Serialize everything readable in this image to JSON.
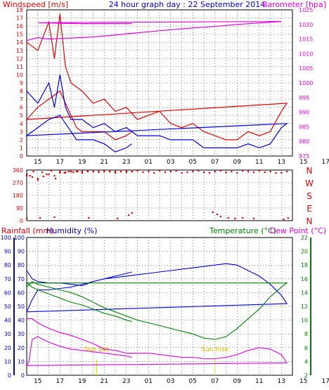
{
  "chart_data": [
    {
      "type": "line",
      "title": "24 hour graph day : 22 September 2014",
      "ylabel_left": "Windspeed [m/s]",
      "ylabel_right": "Barometer [hpa]",
      "x_tick_labels": [
        "15",
        "17",
        "19",
        "21",
        "23",
        "01",
        "03",
        "05",
        "07",
        "09",
        "11",
        "13",
        "15",
        "17",
        "19",
        "21",
        "23"
      ],
      "ylim_left": [
        0,
        18
      ],
      "ylim_right": [
        975,
        1025
      ],
      "left_ticks": [
        0,
        1,
        2,
        3,
        4,
        5,
        6,
        7,
        8,
        9,
        10,
        11,
        12,
        13,
        14,
        15,
        16,
        17,
        18
      ],
      "right_ticks": [
        975,
        980,
        985,
        990,
        995,
        1000,
        1005,
        1010,
        1015,
        1020,
        1025
      ],
      "grid": true,
      "series": [
        {
          "name": "Gust",
          "color": "#e00000",
          "axis": "left",
          "x": [
            14,
            15,
            16,
            16.5,
            17,
            17.5,
            18,
            19,
            20,
            21,
            22,
            23,
            0,
            1,
            2,
            3,
            4,
            5,
            6,
            7,
            8,
            9,
            10,
            11,
            12,
            13,
            13.5,
            14,
            15,
            16,
            17,
            18,
            18.5,
            19,
            20,
            21,
            22,
            23,
            23.5
          ],
          "y": [
            14,
            13,
            16.5,
            12,
            17.5,
            11,
            9,
            8,
            6.5,
            7,
            5.5,
            6,
            4.5,
            5,
            5.5,
            4,
            3.5,
            4,
            3,
            2.5,
            2,
            2,
            3,
            2.5,
            3,
            5.5,
            6.5,
            4.5,
            6,
            7,
            8,
            5,
            3.5,
            3,
            3,
            3,
            2,
            2.5,
            3
          ]
        },
        {
          "name": "Speed",
          "color": "#0000e0",
          "axis": "left",
          "x": [
            14,
            15,
            16,
            16.5,
            17,
            17.5,
            18,
            19,
            20,
            21,
            22,
            23,
            0,
            1,
            2,
            3,
            4,
            5,
            6,
            7,
            8,
            9,
            10,
            11,
            12,
            13,
            13.5,
            14,
            15,
            16,
            17,
            18,
            18.5,
            19,
            20,
            21,
            22,
            23,
            23.5
          ],
          "y": [
            8,
            6.5,
            9,
            6,
            10,
            6,
            4.5,
            4.5,
            3.5,
            4,
            3,
            3.5,
            2.5,
            2.5,
            2.5,
            2,
            2,
            2,
            1,
            1,
            1,
            1,
            1.5,
            1,
            1.5,
            3.5,
            4,
            2.5,
            3.5,
            4.5,
            5,
            3,
            2,
            2,
            2,
            1.5,
            0.5,
            1,
            1.5
          ]
        },
        {
          "name": "Barometer",
          "color": "#e000e0",
          "axis": "right",
          "x": [
            14,
            15,
            16,
            17,
            19,
            21,
            23,
            1,
            3,
            5,
            7,
            9,
            11,
            13,
            15,
            17,
            19,
            21,
            23,
            23.5
          ],
          "y": [
            1014.5,
            1015.5,
            1015,
            1015.2,
            1015.5,
            1016,
            1016.8,
            1017.5,
            1018.2,
            1018.8,
            1019.3,
            1020,
            1020.5,
            1021,
            1020.6,
            1020.4,
            1020.3,
            1020.3,
            1020.3,
            1020.3
          ]
        }
      ]
    },
    {
      "type": "scatter",
      "title": "",
      "ylabel_right_letters": [
        "N",
        "W",
        "S",
        "E",
        "N"
      ],
      "left_ticks": [
        0,
        90,
        180,
        270,
        360
      ],
      "ylim": [
        0,
        360
      ],
      "series": [
        {
          "name": "Direction",
          "color": "#e00000",
          "axis": "left",
          "x": [
            14,
            14.3,
            14.6,
            15,
            15.4,
            15.8,
            16.2,
            16.6,
            17,
            17.4,
            17.8,
            18.2,
            18.6,
            19,
            19.5,
            20,
            20.5,
            21,
            21.5,
            22,
            22.5,
            23,
            23.5,
            0,
            0.5,
            1,
            1.5,
            2,
            2.5,
            3,
            3.5,
            4,
            4.5,
            5,
            5.5,
            6,
            6.5,
            7,
            7.5,
            8,
            8.5,
            9,
            9.5,
            10,
            10.5,
            11,
            11.5,
            12,
            12.5,
            13,
            13.5,
            14,
            14.5,
            15,
            15.5,
            16,
            16.5,
            17,
            17.5,
            18,
            18.5,
            19,
            19.5,
            20,
            20.5,
            21,
            21.5,
            22,
            22.5,
            23,
            23.5
          ],
          "y": [
            330,
            320,
            350,
            290,
            345,
            330,
            355,
            300,
            350,
            340,
            350,
            345,
            350,
            340,
            355,
            350,
            345,
            355,
            350,
            340,
            350,
            345,
            350,
            355,
            345,
            350,
            340,
            355,
            345,
            350,
            355,
            340,
            345,
            350,
            355,
            345,
            340,
            350,
            355,
            345,
            350,
            340,
            355,
            350,
            345,
            355,
            345,
            350,
            340,
            340,
            350,
            320,
            310,
            300,
            315,
            330,
            320,
            340,
            345,
            350,
            350,
            350,
            350,
            350,
            350,
            350,
            350,
            350,
            350,
            355,
            350
          ]
        },
        {
          "name": "Direction (low)",
          "color": "#e00000",
          "axis": "left",
          "x": [
            15.2,
            16.5,
            19.6,
            22.2,
            6.8,
            7.2,
            7.5,
            8.2,
            8.8,
            9.5,
            10.5,
            13.2,
            13.6,
            14.0,
            23.2,
            23.5
          ],
          "y": [
            20,
            25,
            20,
            15,
            60,
            45,
            30,
            20,
            15,
            20,
            15,
            10,
            20,
            15,
            40,
            55
          ]
        }
      ]
    },
    {
      "type": "line",
      "title": "",
      "ylabel_left": "Rainfall (mm)",
      "ylabel_left2": "Humidity (%)",
      "ylabel_right": "Temperature (°C)",
      "ylabel_right2": "Dew Point (°C)",
      "left_ticks": [
        0,
        10,
        20,
        30,
        40,
        50,
        60,
        70,
        80,
        90,
        100
      ],
      "right_ticks": [
        2,
        4,
        6,
        8,
        10,
        12,
        14,
        16,
        18,
        20,
        22
      ],
      "ylim_left": [
        0,
        100
      ],
      "ylim_right": [
        2,
        22
      ],
      "annotations": [
        "Sun Set",
        "Sun Rise",
        "Sun Set"
      ],
      "annotation_x": [
        20.3,
        7.0,
        20.3
      ],
      "grid": true,
      "series": [
        {
          "name": "Humidity",
          "color": "#0000e0",
          "axis": "left",
          "x": [
            14,
            14.5,
            15,
            16,
            17,
            18,
            19,
            20,
            21,
            22,
            23,
            0,
            1,
            2,
            3,
            4,
            5,
            6,
            7,
            8,
            9,
            10,
            11,
            12,
            13,
            13.5,
            14,
            14.5,
            15,
            16,
            17,
            18,
            19,
            20,
            21,
            22,
            23,
            23.5
          ],
          "y": [
            76,
            70,
            68,
            67,
            67,
            66,
            65,
            68,
            70,
            71,
            72,
            73,
            74,
            75,
            76,
            77,
            78,
            79,
            80,
            81,
            80,
            76,
            72,
            66,
            58,
            52,
            46,
            55,
            62,
            62,
            63,
            64,
            66,
            68,
            70,
            72,
            74,
            75
          ]
        },
        {
          "name": "Temperature",
          "color": "#008000",
          "axis": "right",
          "x": [
            14,
            14.5,
            15,
            16,
            17,
            18,
            19,
            20,
            21,
            22,
            23,
            0,
            1,
            2,
            3,
            4,
            5,
            6,
            7,
            8,
            9,
            10,
            11,
            12,
            13,
            13.5,
            14,
            14.5,
            15,
            16,
            17,
            18,
            19,
            20,
            21,
            22,
            23,
            23.5
          ],
          "y": [
            14.8,
            15.6,
            15.2,
            14.8,
            14.4,
            14,
            13.4,
            12.6,
            11.8,
            11.2,
            10.6,
            10,
            9.6,
            9.2,
            8.8,
            8.4,
            8,
            7.4,
            7.2,
            7.6,
            8.8,
            10.2,
            11.6,
            13.4,
            14.8,
            15.4,
            15.4,
            14.8,
            14.4,
            13.8,
            13.2,
            12.6,
            12.2,
            11.6,
            11,
            10.6,
            10,
            9.8
          ]
        },
        {
          "name": "Dew Point",
          "color": "#e000e0",
          "axis": "right",
          "x": [
            14,
            14.5,
            15,
            16,
            17,
            18,
            19,
            20,
            21,
            22,
            23,
            0,
            1,
            2,
            3,
            4,
            5,
            6,
            7,
            8,
            9,
            10,
            11,
            12,
            13,
            13.5,
            14,
            14.2,
            14.5,
            15,
            16,
            17,
            18,
            19,
            20,
            21,
            22,
            23,
            23.5
          ],
          "y": [
            10.2,
            10.2,
            9.6,
            8.8,
            8.2,
            7.8,
            7.2,
            6.6,
            5.8,
            5.6,
            5.2,
            5.2,
            5.2,
            5,
            4.8,
            4.6,
            4.6,
            4.4,
            4.4,
            4.6,
            5,
            5.6,
            6,
            5.8,
            5,
            3.8,
            3.4,
            4,
            7.2,
            7.6,
            6.8,
            6.2,
            5.8,
            5.6,
            5.4,
            5.2,
            5,
            4.8,
            4.6
          ]
        }
      ]
    }
  ]
}
